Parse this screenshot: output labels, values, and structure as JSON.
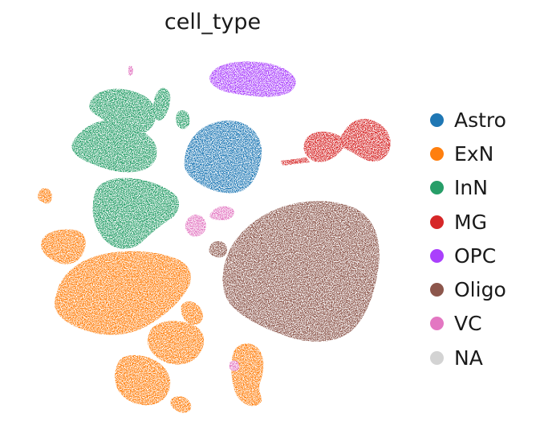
{
  "chart_data": {
    "type": "scatter",
    "title": "cell_type",
    "xlabel": "",
    "ylabel": "",
    "grid": false,
    "axes_visible": false,
    "legend_position": "right",
    "legend": [
      {
        "label": "Astro",
        "color": "#1f77b4"
      },
      {
        "label": "ExN",
        "color": "#ff7f0e"
      },
      {
        "label": "InN",
        "color": "#279e68"
      },
      {
        "label": "MG",
        "color": "#d62728"
      },
      {
        "label": "OPC",
        "color": "#aa40fc"
      },
      {
        "label": "Oligo",
        "color": "#8c564b"
      },
      {
        "label": "VC",
        "color": "#e377c2"
      },
      {
        "label": "NA",
        "color": "#d3d3d3"
      }
    ]
  }
}
